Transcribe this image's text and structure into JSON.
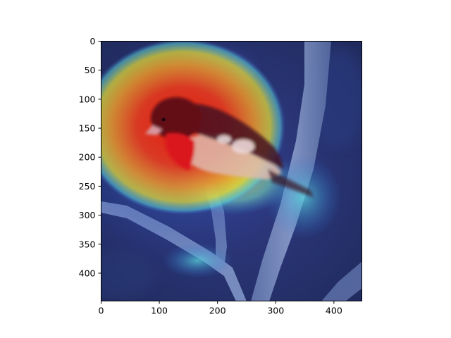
{
  "figure": {
    "type": "image-with-heatmap-overlay",
    "image_subject": "bird-on-branch",
    "colormap": "jet",
    "axes": {
      "x": {
        "range": [
          0,
          448
        ],
        "ticks": [
          0,
          100,
          200,
          300,
          400
        ]
      },
      "y": {
        "range": [
          0,
          448
        ],
        "ticks": [
          0,
          50,
          100,
          150,
          200,
          250,
          300,
          350,
          400
        ],
        "inverted": true
      }
    },
    "colors": {
      "background_dark": "#2a3468",
      "bird_head": "#7a0c10",
      "bird_breast": "#e01818",
      "heat_red": "#ff2a00",
      "heat_orange": "#ff9a18",
      "heat_yellow": "#f4e628",
      "heat_cyan": "#58e0e8",
      "branch": "#8aa0c8"
    }
  }
}
